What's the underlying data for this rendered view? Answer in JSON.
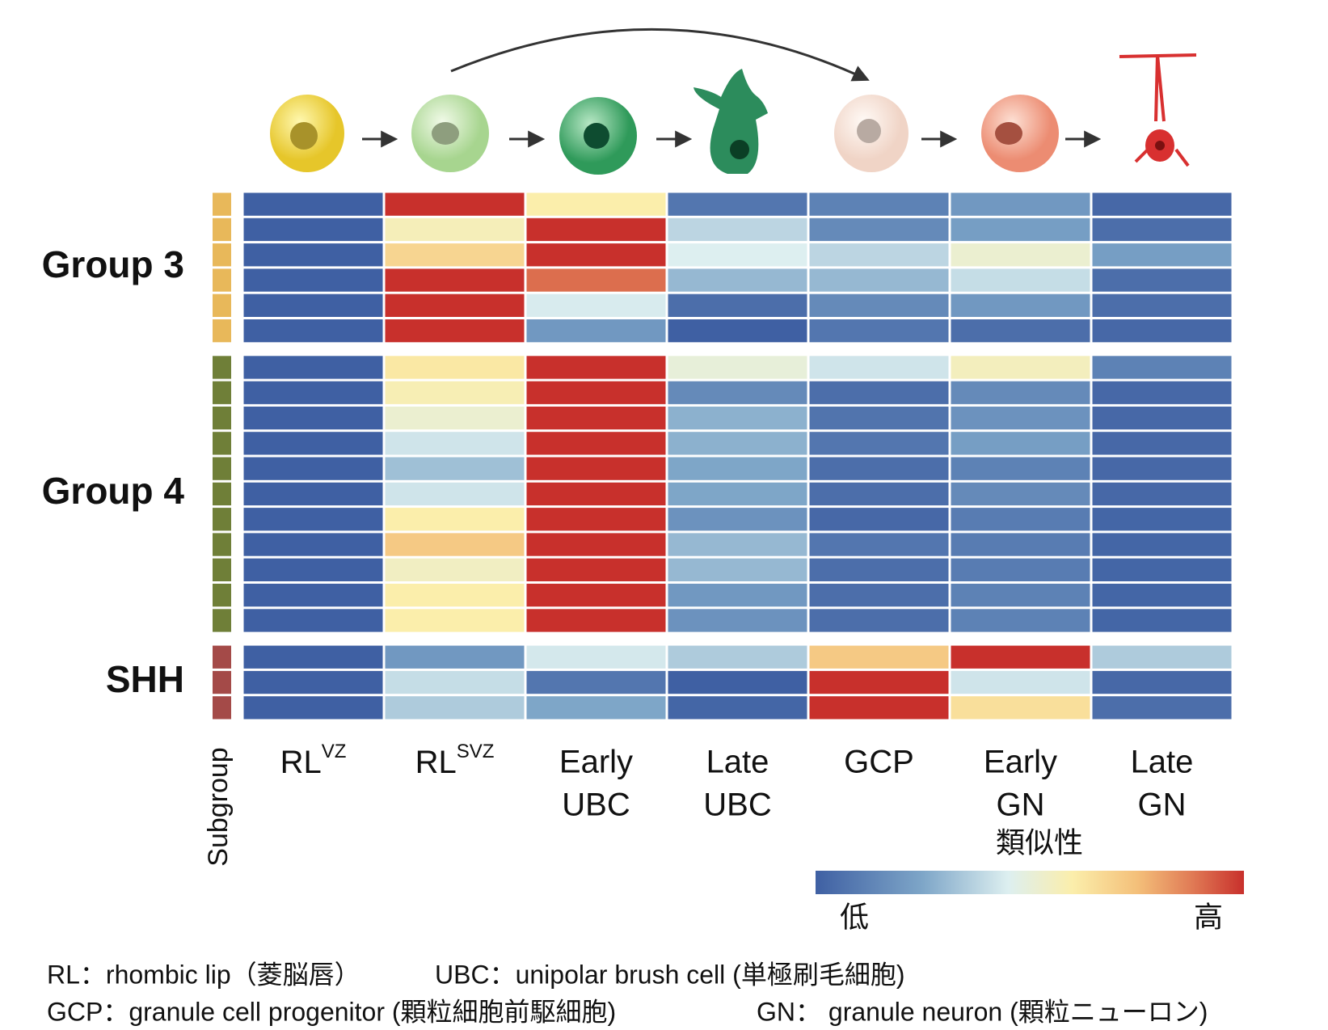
{
  "chart_data": {
    "type": "heatmap",
    "columns": [
      {
        "main": "RL",
        "sup": "VZ"
      },
      {
        "main": "RL",
        "sup": "SVZ"
      },
      {
        "lines": [
          "Early",
          "UBC"
        ]
      },
      {
        "lines": [
          "Late",
          "UBC"
        ]
      },
      {
        "lines": [
          "GCP"
        ]
      },
      {
        "lines": [
          "Early",
          "GN"
        ]
      },
      {
        "lines": [
          "Late",
          "GN"
        ]
      }
    ],
    "subgroup_label": "Subgroup",
    "vlim": [
      0,
      1
    ],
    "colorscale": [
      [
        0,
        "#3f60a3"
      ],
      [
        0.25,
        "#7ea6c8"
      ],
      [
        0.45,
        "#ddeff0"
      ],
      [
        0.6,
        "#fbeeab"
      ],
      [
        0.75,
        "#f4c07a"
      ],
      [
        0.88,
        "#e07a55"
      ],
      [
        1,
        "#c8302c"
      ]
    ],
    "colorbar": {
      "label": "類似性",
      "low": "低",
      "high": "高"
    },
    "groups": [
      {
        "name": "Group 3",
        "color": "#e8b85a",
        "rows": [
          [
            0,
            1,
            0.6,
            0.08,
            0.12,
            0.2,
            0.03
          ],
          [
            0,
            0.57,
            1,
            0.38,
            0.15,
            0.22,
            0.05
          ],
          [
            0,
            0.68,
            1,
            0.45,
            0.38,
            0.52,
            0.22
          ],
          [
            0,
            1,
            0.9,
            0.3,
            0.3,
            0.4,
            0.05
          ],
          [
            0,
            1,
            0.44,
            0.05,
            0.15,
            0.2,
            0.05
          ],
          [
            0,
            1,
            0.2,
            0,
            0.08,
            0.05,
            0.03
          ]
        ]
      },
      {
        "name": "Group 4",
        "color": "#6f7f38",
        "rows": [
          [
            0,
            0.62,
            1,
            0.5,
            0.42,
            0.56,
            0.12
          ],
          [
            0,
            0.58,
            1,
            0.15,
            0.05,
            0.15,
            0.03
          ],
          [
            0,
            0.52,
            1,
            0.28,
            0.07,
            0.18,
            0.03
          ],
          [
            0,
            0.42,
            1,
            0.28,
            0.08,
            0.22,
            0.03
          ],
          [
            0,
            0.32,
            1,
            0.25,
            0.05,
            0.12,
            0.03
          ],
          [
            0,
            0.42,
            1,
            0.25,
            0.05,
            0.15,
            0.03
          ],
          [
            0,
            0.6,
            1,
            0.18,
            0.03,
            0.1,
            0.02
          ],
          [
            0,
            0.72,
            1,
            0.3,
            0.08,
            0.1,
            0.02
          ],
          [
            0,
            0.55,
            1,
            0.3,
            0.05,
            0.1,
            0.02
          ],
          [
            0,
            0.6,
            1,
            0.2,
            0.05,
            0.12,
            0.02
          ],
          [
            0,
            0.6,
            1,
            0.18,
            0.05,
            0.12,
            0.02
          ]
        ]
      },
      {
        "name": "SHH",
        "color": "#a44a48",
        "rows": [
          [
            0,
            0.2,
            0.43,
            0.35,
            0.72,
            1,
            0.35
          ],
          [
            0,
            0.4,
            0.08,
            0,
            1,
            0.42,
            0.03
          ],
          [
            0,
            0.35,
            0.25,
            0.02,
            1,
            0.65,
            0.05
          ]
        ]
      }
    ],
    "footnotes": [
      [
        "RL：rhombic lip（菱脳唇）",
        "UBC：unipolar brush cell (単極刷毛細胞)"
      ],
      [
        "GCP：granule cell progenitor (顆粒細胞前駆細胞)",
        "GN： granule neuron (顆粒ニューロン)"
      ]
    ]
  }
}
